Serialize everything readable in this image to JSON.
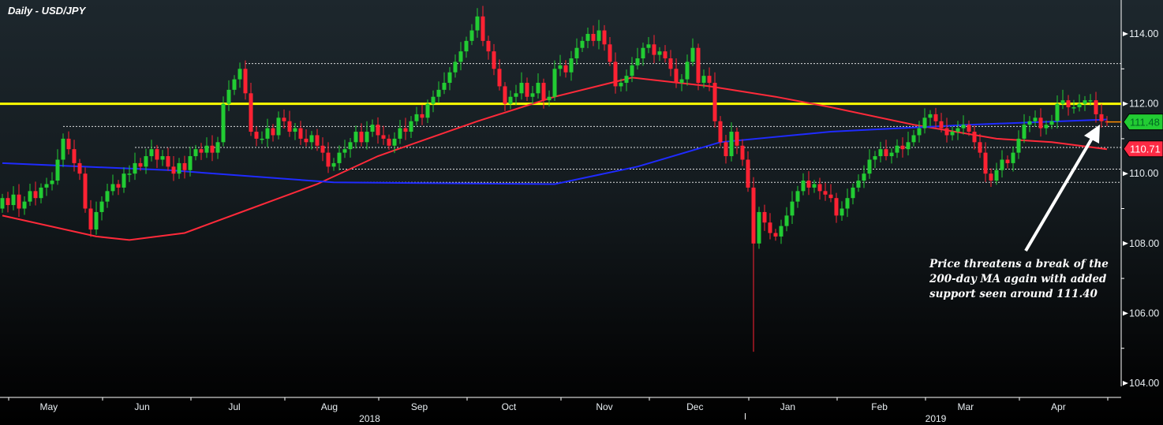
{
  "title": "Daily - USD/JPY",
  "annotation": [
    "Price threatens a break of the",
    "200-day MA again with added",
    "support seen around 111.40"
  ],
  "chart_data": {
    "type": "candlestick",
    "title": "Daily - USD/JPY",
    "ylim": [
      104,
      115
    ],
    "yticks": [
      "104.00",
      "106.00",
      "108.00",
      "110.00",
      "112.00",
      "114.00"
    ],
    "ytick_values": [
      104,
      106,
      108,
      110,
      112,
      114
    ],
    "months": [
      {
        "label": "May",
        "idx": 8.4
      },
      {
        "label": "Jun",
        "idx": 25.3
      },
      {
        "label": "Jul",
        "idx": 42
      },
      {
        "label": "Aug",
        "idx": 59.2
      },
      {
        "label": "Sep",
        "idx": 75.5
      },
      {
        "label": "Oct",
        "idx": 91.7
      },
      {
        "label": "Nov",
        "idx": 109
      },
      {
        "label": "Dec",
        "idx": 125.4
      },
      {
        "label": "Jan",
        "idx": 142.2
      },
      {
        "label": "Feb",
        "idx": 158.8
      },
      {
        "label": "Mar",
        "idx": 174.4
      },
      {
        "label": "Apr",
        "idx": 191.2
      }
    ],
    "years": [
      {
        "label": "2018",
        "idx": 66.5
      },
      {
        "label": "2019",
        "idx": 169
      }
    ],
    "closes": [
      109.3,
      109.1,
      109.4,
      109.0,
      109.2,
      109.5,
      109.3,
      109.6,
      109.7,
      109.8,
      110.4,
      111.0,
      110.7,
      110.3,
      110.0,
      109.0,
      108.4,
      108.9,
      109.2,
      109.5,
      109.7,
      109.6,
      110.0,
      110.0,
      110.3,
      110.2,
      110.5,
      110.7,
      110.4,
      110.5,
      110.2,
      110.0,
      110.3,
      110.1,
      110.5,
      110.7,
      110.6,
      110.8,
      110.6,
      110.9,
      112.0,
      112.4,
      112.7,
      113.0,
      112.3,
      111.2,
      111.0,
      111.0,
      111.3,
      111.1,
      111.6,
      111.5,
      111.2,
      111.3,
      111.0,
      110.9,
      111.1,
      110.8,
      110.6,
      110.2,
      110.3,
      110.6,
      110.7,
      110.9,
      111.2,
      110.9,
      111.2,
      111.4,
      111.1,
      111.0,
      110.8,
      111.0,
      111.3,
      111.2,
      111.5,
      111.7,
      111.6,
      112.0,
      112.2,
      112.4,
      112.6,
      112.9,
      113.2,
      113.5,
      113.8,
      114.1,
      114.5,
      113.8,
      113.5,
      113.0,
      112.5,
      112.0,
      112.2,
      112.3,
      112.6,
      112.2,
      112.3,
      112.6,
      112.1,
      112.2,
      113.0,
      113.1,
      112.9,
      113.3,
      113.6,
      113.8,
      114.0,
      113.8,
      114.1,
      113.7,
      113.2,
      112.5,
      112.6,
      112.8,
      113.1,
      113.3,
      113.6,
      113.7,
      113.4,
      113.5,
      113.3,
      113.0,
      112.6,
      112.7,
      113.2,
      113.6,
      112.6,
      112.8,
      112.6,
      111.5,
      110.9,
      110.5,
      111.2,
      110.8,
      110.4,
      109.6,
      108.0,
      108.9,
      108.6,
      108.3,
      108.2,
      108.5,
      108.8,
      109.2,
      109.5,
      109.8,
      109.6,
      109.7,
      109.5,
      109.4,
      109.3,
      108.8,
      109.0,
      109.3,
      109.6,
      109.8,
      110.0,
      110.4,
      110.5,
      110.7,
      110.5,
      110.6,
      110.8,
      110.7,
      110.9,
      111.1,
      111.3,
      111.6,
      111.7,
      111.5,
      111.3,
      111.1,
      111.2,
      111.3,
      111.4,
      111.2,
      110.9,
      110.6,
      110.0,
      109.8,
      110.1,
      110.4,
      110.3,
      110.6,
      111.0,
      111.4,
      111.5,
      111.6,
      111.3,
      111.4,
      111.5,
      112.0,
      112.1,
      111.9,
      111.9,
      112.0,
      112.1,
      112.1,
      111.7,
      111.5,
      111.48
    ],
    "first_open": 109.0,
    "spike": {
      "idx": 136,
      "low": 104.9
    },
    "ma200": {
      "name": "200-day MA",
      "color": "#1f2bff",
      "points": [
        [
          0,
          110.3
        ],
        [
          30,
          110.1
        ],
        [
          60,
          109.75
        ],
        [
          100,
          109.7
        ],
        [
          115,
          110.2
        ],
        [
          130,
          110.9
        ],
        [
          150,
          111.2
        ],
        [
          175,
          111.4
        ],
        [
          200,
          111.55
        ]
      ]
    },
    "ma100": {
      "name": "100-day MA",
      "color": "#ff2a3a",
      "points": [
        [
          0,
          108.8
        ],
        [
          17,
          108.2
        ],
        [
          23,
          108.1
        ],
        [
          33,
          108.3
        ],
        [
          45,
          109.0
        ],
        [
          57,
          109.7
        ],
        [
          68,
          110.5
        ],
        [
          86,
          111.5
        ],
        [
          100,
          112.2
        ],
        [
          114,
          112.75
        ],
        [
          128,
          112.5
        ],
        [
          140,
          112.2
        ],
        [
          150,
          111.9
        ],
        [
          165,
          111.4
        ],
        [
          180,
          111.0
        ],
        [
          190,
          110.9
        ],
        [
          200,
          110.7
        ]
      ]
    },
    "resistance": {
      "price": 112.0,
      "color": "#ffff00"
    },
    "levels": [
      {
        "price": 113.15,
        "from": 44
      },
      {
        "price": 111.35,
        "from": 11
      },
      {
        "price": 110.75,
        "from": 24
      },
      {
        "price": 110.13,
        "from": 61
      },
      {
        "price": 109.75,
        "from": 62
      }
    ],
    "last_price": {
      "label": "111.48",
      "value": 111.48,
      "color": "#22cc33"
    },
    "ma_label": {
      "label": "110.71",
      "value": 110.71,
      "color": "#ff2a44"
    },
    "up_color": "#22cc33",
    "down_color": "#ff2233"
  }
}
